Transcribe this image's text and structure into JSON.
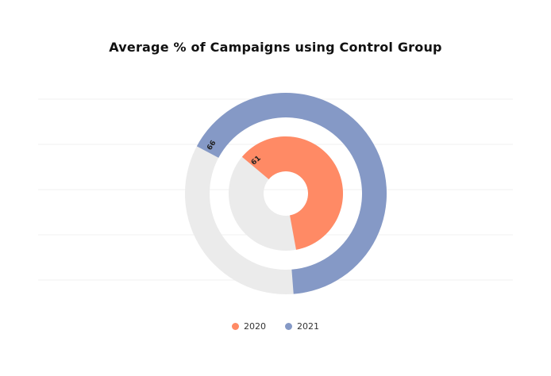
{
  "chart_data": {
    "type": "pie",
    "title": "Average % of Campaigns using Control Group",
    "subtype": "nested-donut",
    "max": 100,
    "series": [
      {
        "name": "2020",
        "value": 61,
        "label": "61",
        "color": "#FF8A65"
      },
      {
        "name": "2021",
        "value": 66,
        "label": "66",
        "color": "#8599C6"
      }
    ],
    "remainder_color": "#EBEBEB",
    "grid": true,
    "legend_position": "bottom-center"
  }
}
